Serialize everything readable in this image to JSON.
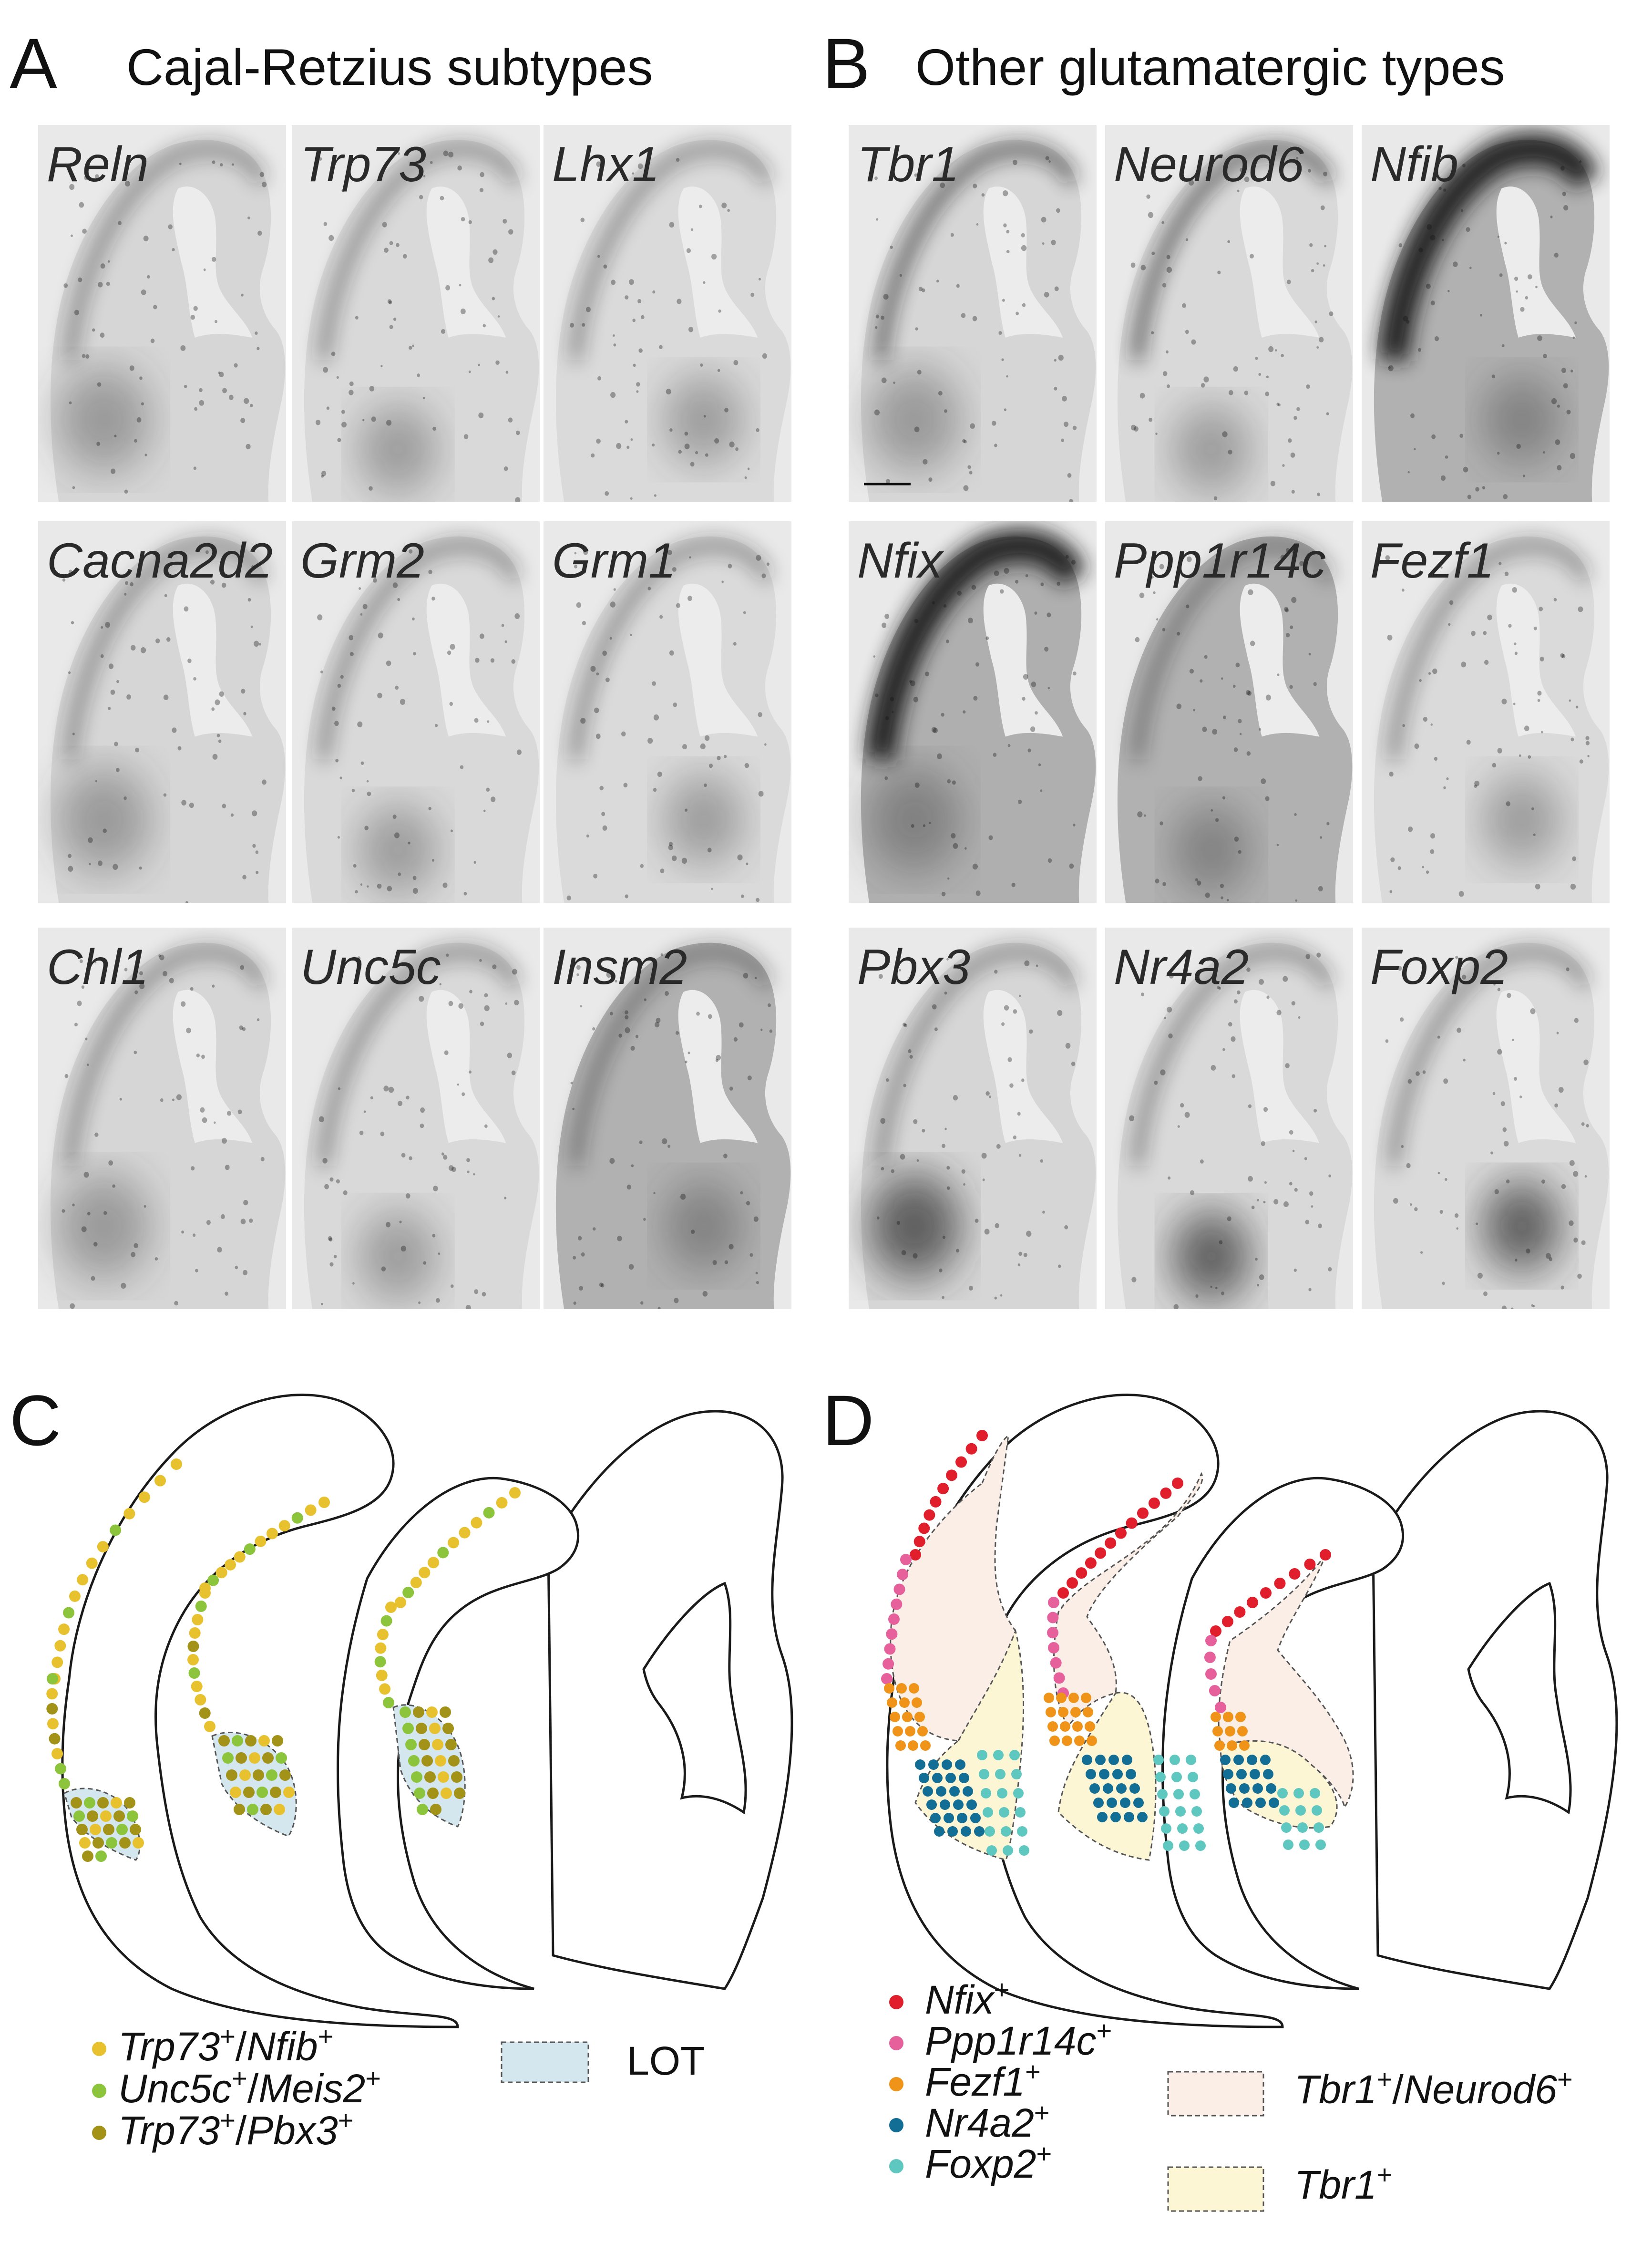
{
  "panels": {
    "A": {
      "letter": "A",
      "title": "Cajal-Retzius subtypes",
      "genes": [
        "Reln",
        "Trp73",
        "Lhx1",
        "Cacna2d2",
        "Grm2",
        "Grm1",
        "Chl1",
        "Unc5c",
        "Insm2"
      ]
    },
    "B": {
      "letter": "B",
      "title": "Other glutamatergic types",
      "genes": [
        "Tbr1",
        "Neurod6",
        "Nfib",
        "Nfix",
        "Ppp1r14c",
        "Fezf1",
        "Pbx3",
        "Nr4a2",
        "Foxp2"
      ]
    },
    "C": {
      "letter": "C"
    },
    "D": {
      "letter": "D"
    }
  },
  "legend_C": {
    "items": [
      {
        "gene": "Trp73",
        "sup1": "+",
        "sep": "/",
        "gene2": "Nfib",
        "sup2": "+",
        "color": "#e8c22e"
      },
      {
        "gene": "Unc5c",
        "sup1": "+",
        "sep": "/",
        "gene2": "Meis2",
        "sup2": "+",
        "color": "#8cc43c"
      },
      {
        "gene": "Trp73",
        "sup1": "+",
        "sep": "/",
        "gene2": "Pbx3",
        "sup2": "+",
        "color": "#a39218"
      }
    ],
    "region": {
      "label": "LOT",
      "color": "#d4e6ee"
    }
  },
  "legend_D": {
    "items": [
      {
        "gene": "Nfix",
        "sup": "+",
        "color": "#e01e2c"
      },
      {
        "gene": "Ppp1r14c",
        "sup": "+",
        "color": "#e6609c"
      },
      {
        "gene": "Fezf1",
        "sup": "+",
        "color": "#ef9418"
      },
      {
        "gene": "Nr4a2",
        "sup": "+",
        "color": "#136e96"
      },
      {
        "gene": "Foxp2",
        "sup": "+",
        "color": "#5ec8c0"
      }
    ],
    "regions": [
      {
        "gene": "Tbr1",
        "sup1": "+",
        "sep": "/",
        "gene2": "Neurod6",
        "sup2": "+",
        "color": "#fbeee6"
      },
      {
        "gene": "Tbr1",
        "sup1": "+",
        "color": "#fcf6d4"
      }
    ]
  }
}
